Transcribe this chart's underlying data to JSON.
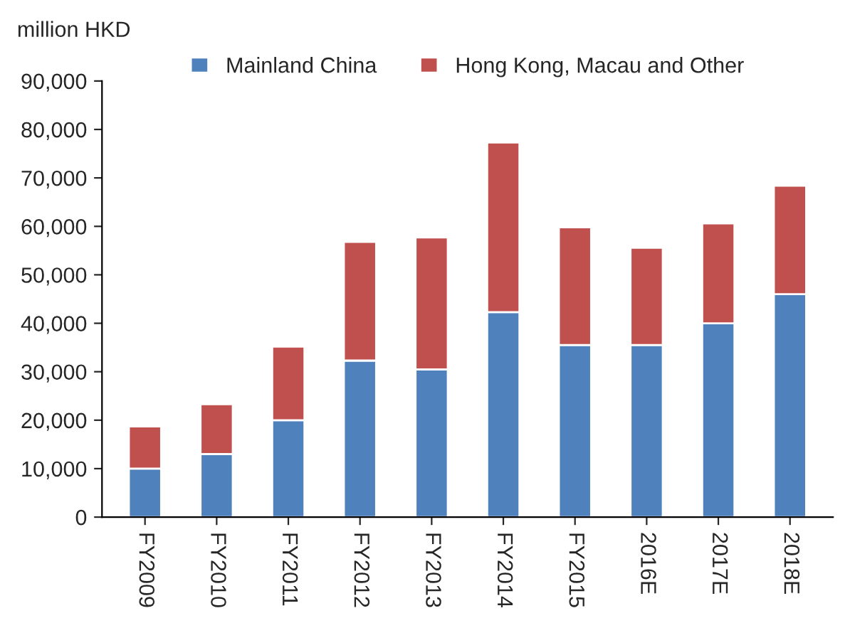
{
  "chart_data": {
    "type": "bar",
    "stacked": true,
    "ylabel": "million HKD",
    "categories": [
      "FY2009",
      "FY2010",
      "FY2011",
      "FY2012",
      "FY2013",
      "FY2014",
      "FY2015",
      "2016E",
      "2017E",
      "2018E"
    ],
    "series": [
      {
        "name": "Mainland China",
        "color": "#4f81bd",
        "values": [
          10000,
          13000,
          20000,
          32300,
          30500,
          42300,
          35500,
          35500,
          40000,
          46000
        ]
      },
      {
        "name": "Hong Kong, Macau and Other",
        "color": "#c0504d",
        "values": [
          8700,
          10300,
          15200,
          24500,
          27200,
          35000,
          24300,
          20100,
          20600,
          22400
        ]
      }
    ],
    "ylim": [
      0,
      90000
    ],
    "yticks": [
      {
        "value": 0,
        "label": "0"
      },
      {
        "value": 10000,
        "label": "10,000"
      },
      {
        "value": 20000,
        "label": "20,000"
      },
      {
        "value": 30000,
        "label": "30,000"
      },
      {
        "value": 40000,
        "label": "40,000"
      },
      {
        "value": 50000,
        "label": "50,000"
      },
      {
        "value": 60000,
        "label": "60,000"
      },
      {
        "value": 70000,
        "label": "70,000"
      },
      {
        "value": 80000,
        "label": "80,000"
      },
      {
        "value": 90000,
        "label": "90,000"
      }
    ],
    "grid": false,
    "legend": "top"
  }
}
